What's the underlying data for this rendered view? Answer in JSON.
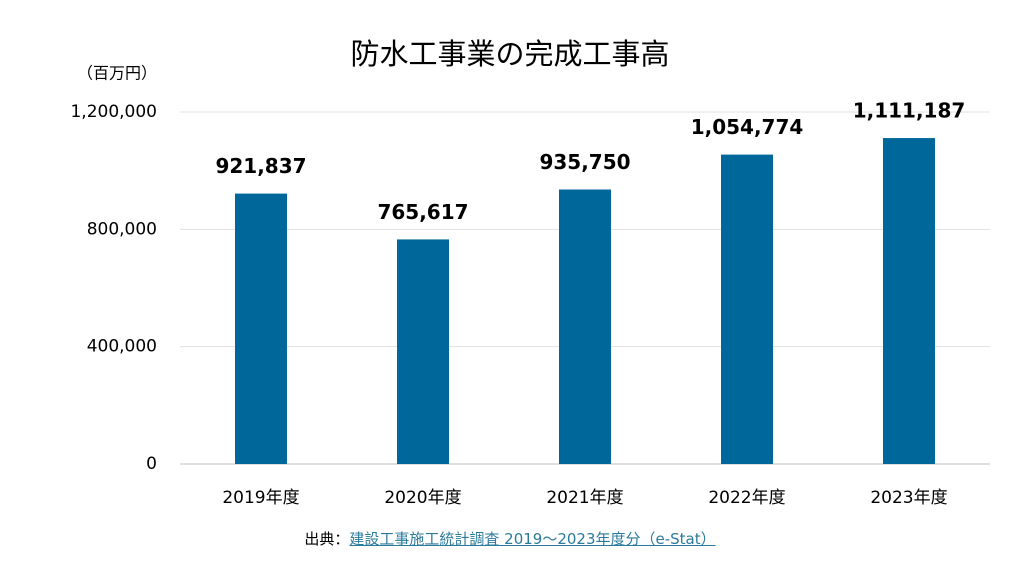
{
  "chart_data": {
    "type": "bar",
    "title": "防水工事業の完成工事高",
    "y_unit_label": "（百万円）",
    "categories": [
      "2019年度",
      "2020年度",
      "2021年度",
      "2022年度",
      "2023年度"
    ],
    "values": [
      921837,
      765617,
      935750,
      1054774,
      1111187
    ],
    "value_labels": [
      "921,837",
      "765,617",
      "935,750",
      "1,054,774",
      "1,111,187"
    ],
    "color": "#00679a",
    "ylim": [
      0,
      1200000
    ],
    "yticks": [
      0,
      {
        "value": 400000,
        "label": "400,000"
      },
      {
        "value": 800000,
        "label": "800,000"
      },
      {
        "value": 1200000,
        "label": "1,200,000"
      }
    ],
    "grid": true,
    "source": {
      "prefix": "出典：",
      "link_text": "建設工事施工統計調査 2019～2023年度分（e-Stat）"
    }
  }
}
